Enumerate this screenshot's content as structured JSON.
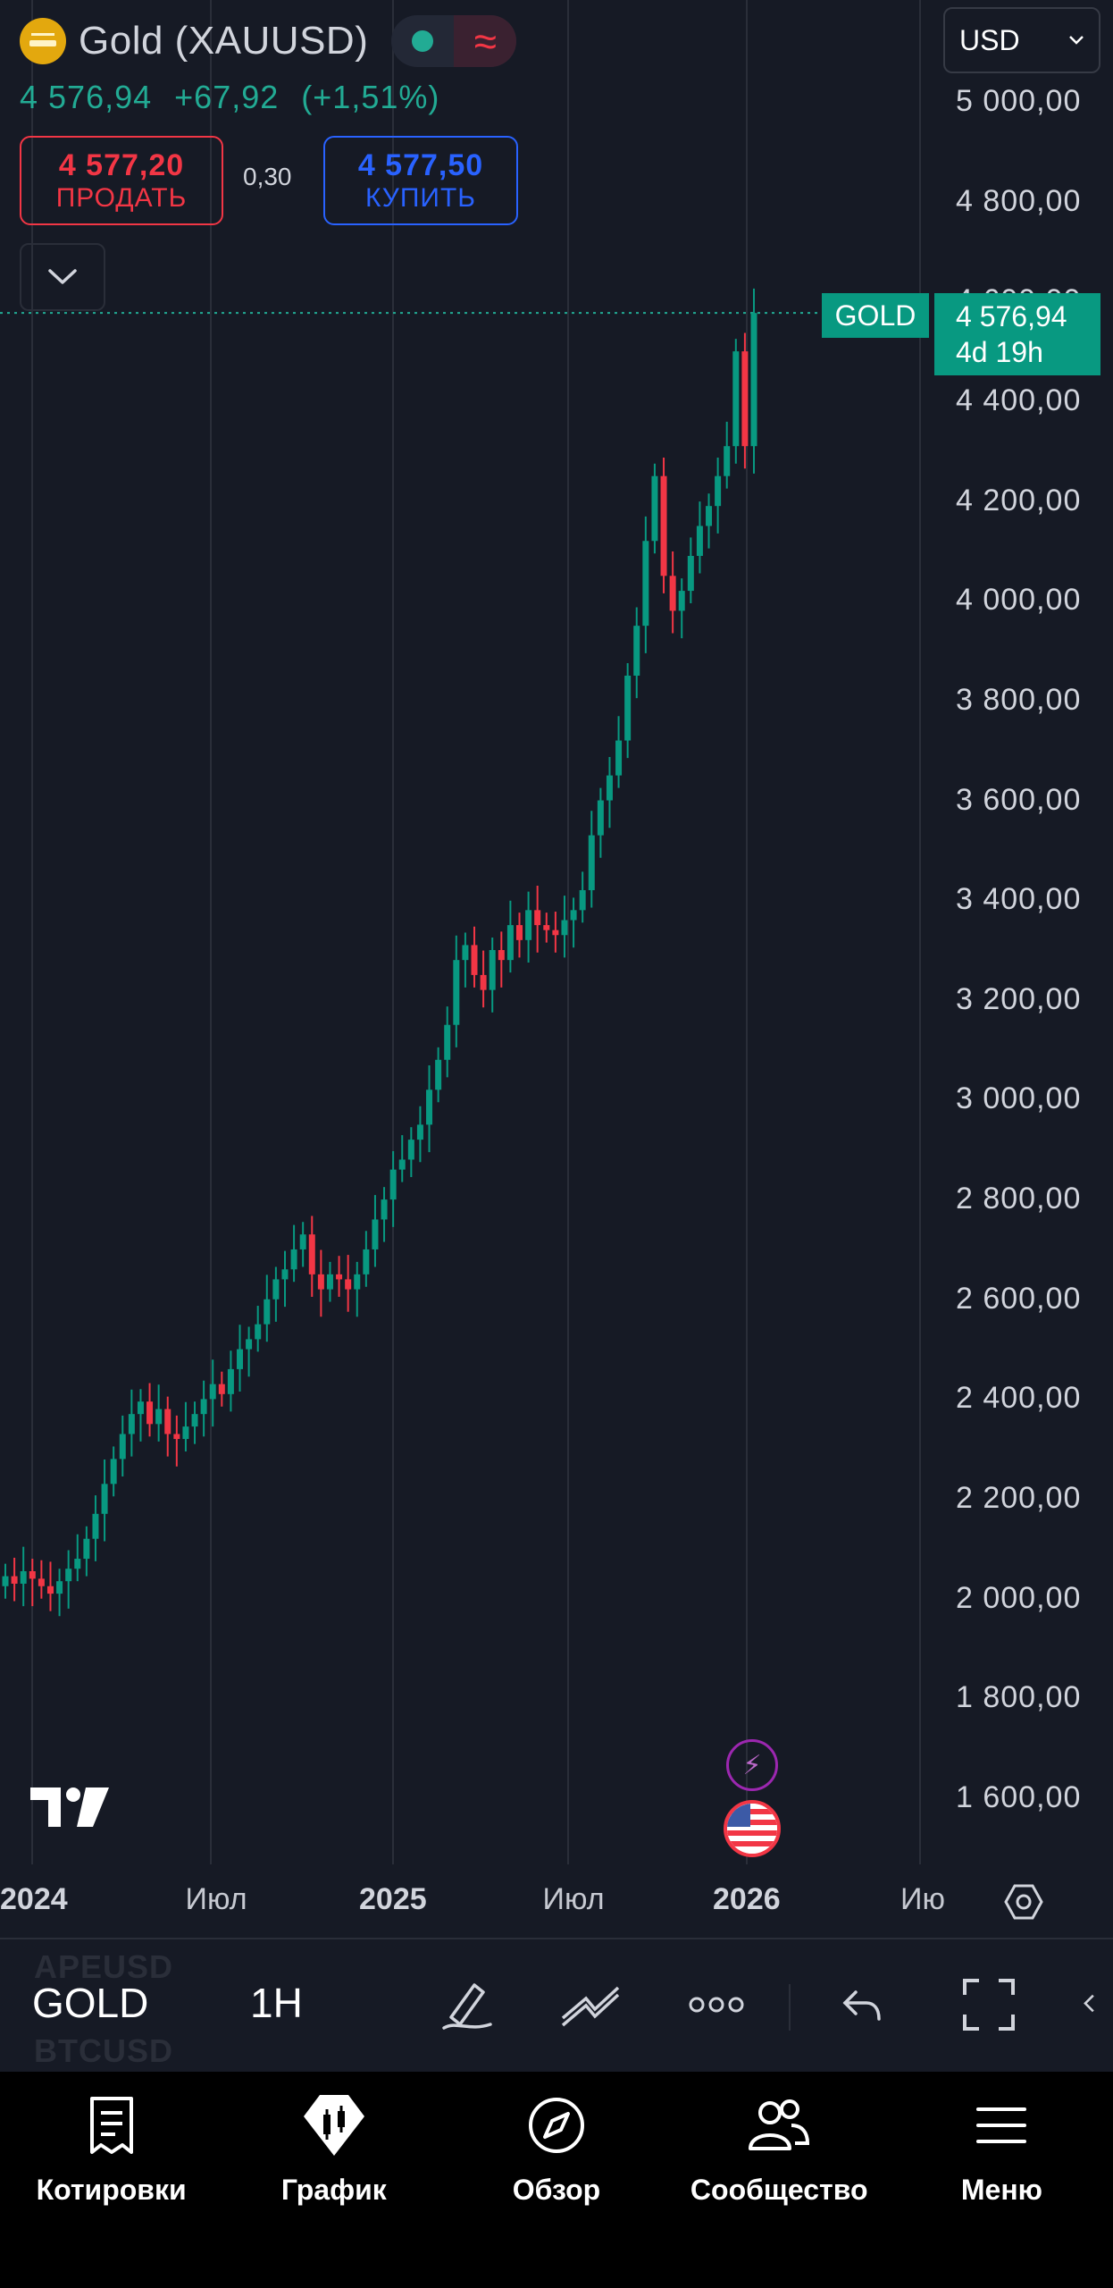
{
  "header": {
    "title": "Gold (XAUUSD)",
    "last_price": "4 576,94",
    "change": "+67,92",
    "change_pct": "(+1,51%)"
  },
  "trade": {
    "sell_price": "4 577,20",
    "sell_label": "ПРОДАТЬ",
    "spread": "0,30",
    "buy_price": "4 577,50",
    "buy_label": "КУПИТЬ"
  },
  "currency": "USD",
  "price_tag": {
    "symbol": "GOLD",
    "price": "4 576,94",
    "countdown": "4d 19h"
  },
  "chart_data": {
    "type": "candlestick",
    "title": "",
    "ylim": [
      1500,
      5200
    ],
    "y_ticks": [
      "5 000,00",
      "4 800,00",
      "4 600,00",
      "4 400,00",
      "4 200,00",
      "4 000,00",
      "3 800,00",
      "3 600,00",
      "3 400,00",
      "3 200,00",
      "3 000,00",
      "2 800,00",
      "2 600,00",
      "2 400,00",
      "2 200,00",
      "2 000,00",
      "1 800,00",
      "1 600,00"
    ],
    "x_ticks": [
      "2024",
      "Июл",
      "2025",
      "Июл",
      "2026",
      "Ию"
    ],
    "x_ticks_bold": [
      true,
      false,
      true,
      false,
      true,
      false
    ],
    "series": [
      {
        "values": [
          2045,
          2030,
          2055,
          2040,
          2025,
          2010,
          2035,
          2060,
          2080,
          2120,
          2170,
          2230,
          2280,
          2330,
          2370,
          2395,
          2350,
          2380,
          2330,
          2320,
          2345,
          2370,
          2400,
          2430,
          2410,
          2460,
          2500,
          2520,
          2550,
          2600,
          2640,
          2660,
          2700,
          2730,
          2650,
          2620,
          2650,
          2640,
          2620,
          2650,
          2700,
          2760,
          2800,
          2860,
          2880,
          2920,
          2950,
          3020,
          3080,
          3150,
          3280,
          3310,
          3250,
          3220,
          3300,
          3280,
          3350,
          3320,
          3380,
          3350,
          3340,
          3330,
          3360,
          3380,
          3420,
          3530,
          3600,
          3650,
          3720,
          3850,
          3950,
          4120,
          4250,
          4050,
          3980,
          4020,
          4090,
          4150,
          4190,
          4250,
          4310,
          4500,
          4310,
          4576.94
        ],
        "up_color": "#089981",
        "down_color": "#f23645"
      }
    ]
  },
  "events": {
    "flash_icon": "lightning-icon",
    "flag_icon": "us-flag-icon"
  },
  "toolbar": {
    "symbol": "GOLD",
    "interval": "1H",
    "ghost_top": "APEUSD",
    "ghost_bottom": "BTCUSD"
  },
  "nav": [
    {
      "label": "Котировки",
      "icon": "quotes-icon"
    },
    {
      "label": "График",
      "icon": "chart-icon"
    },
    {
      "label": "Обзор",
      "icon": "compass-icon"
    },
    {
      "label": "Сообщество",
      "icon": "community-icon"
    },
    {
      "label": "Меню",
      "icon": "menu-icon"
    }
  ]
}
